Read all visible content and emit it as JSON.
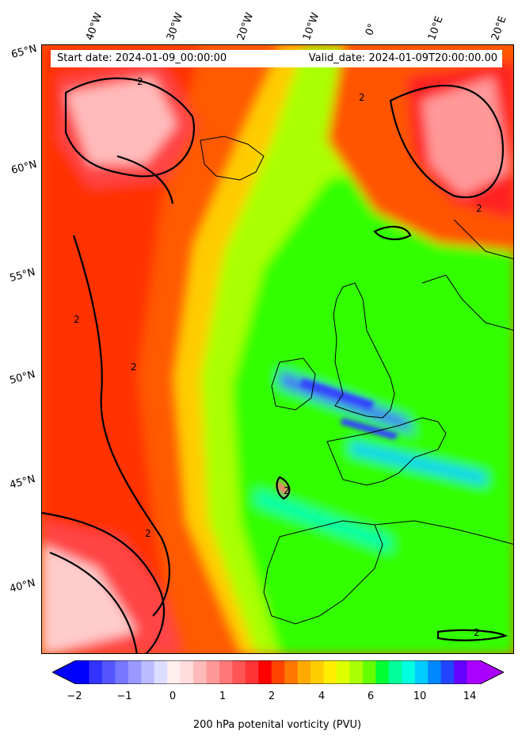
{
  "map": {
    "projection_extent": {
      "lon_min": -50,
      "lon_max": 20,
      "lat_min": 37,
      "lat_max": 65
    },
    "lon_labels": [
      "40°W",
      "30°W",
      "20°W",
      "10°W",
      "0°",
      "10°E",
      "20°E"
    ],
    "lat_labels": [
      "65°N",
      "60°N",
      "55°N",
      "50°N",
      "45°N",
      "40°N"
    ],
    "contour_label": "2"
  },
  "info": {
    "start_date": "Start date: 2024-01-09_00:00:00",
    "valid_date": "Valid_date: 2024-01-09T20:00:00.00"
  },
  "colorbar": {
    "ticks": [
      "−2",
      "−1",
      "0",
      "1",
      "2",
      "4",
      "6",
      "10",
      "14"
    ],
    "label": "200 hPa potenital vorticity (PVU)",
    "colors": [
      "#0000ff",
      "#3333ff",
      "#5555ff",
      "#7777ff",
      "#9999ff",
      "#bbbbff",
      "#ddddff",
      "#ffeeee",
      "#ffdddd",
      "#ffbbbb",
      "#ff9999",
      "#ff7777",
      "#ff5555",
      "#ff3333",
      "#ff0000",
      "#ff4400",
      "#ff7700",
      "#ffaa00",
      "#ffcc00",
      "#ffee00",
      "#ddff00",
      "#aaff00",
      "#66ff00",
      "#00ff33",
      "#00ff99",
      "#00ffdd",
      "#00ccff",
      "#0088ff",
      "#2244ff",
      "#6600ff",
      "#aa00ff"
    ]
  }
}
